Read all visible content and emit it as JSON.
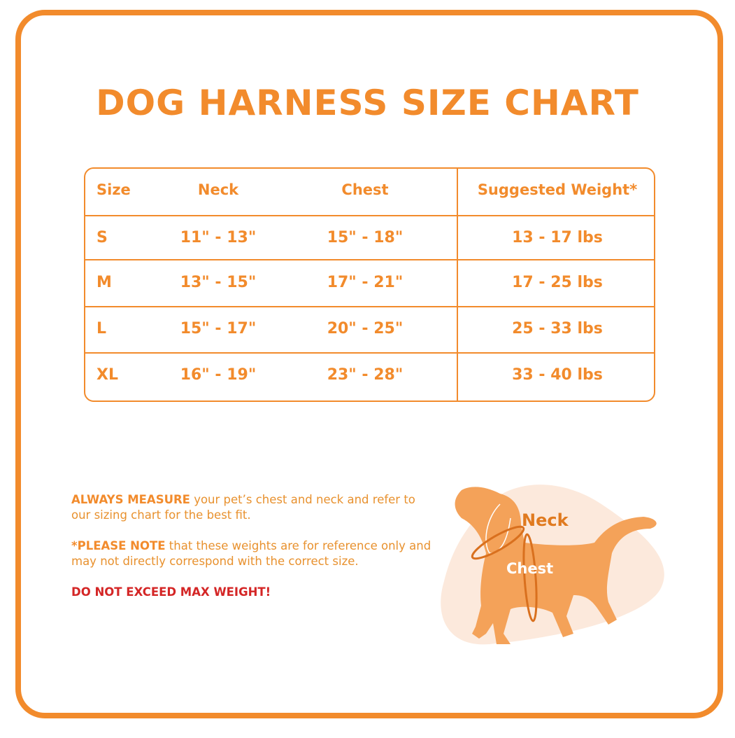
{
  "title": "DOG HARNESS SIZE CHART",
  "colors": {
    "accent": "#F28B2C",
    "warning": "#D42626",
    "blob": "#FCE9DC",
    "dog": "#F4A259"
  },
  "table": {
    "headers": [
      "Size",
      "Neck",
      "Chest",
      "Suggested Weight*"
    ],
    "rows": [
      [
        "S",
        "11\" - 13\"",
        "15\"  - 18\"",
        "13 - 17 lbs"
      ],
      [
        "M",
        "13\" - 15\"",
        "17\" - 21\"",
        "17 - 25 lbs"
      ],
      [
        "L",
        "15\" - 17\"",
        "20\" - 25\"",
        "25 - 33 lbs"
      ],
      [
        "XL",
        "16\" - 19\"",
        "23\" - 28\"",
        "33 - 40 lbs"
      ]
    ]
  },
  "notes": {
    "measure_bold": "ALWAYS MEASURE",
    "measure_text": " your pet’s chest and neck and refer to our sizing chart for the best fit.",
    "note_bold": "*PLEASE NOTE",
    "note_text": " that these weights are for reference only and may not directly correspond with the correct size.",
    "warning": "DO NOT EXCEED MAX WEIGHT!"
  },
  "illustration": {
    "neck_label": "Neck",
    "chest_label": "Chest"
  }
}
